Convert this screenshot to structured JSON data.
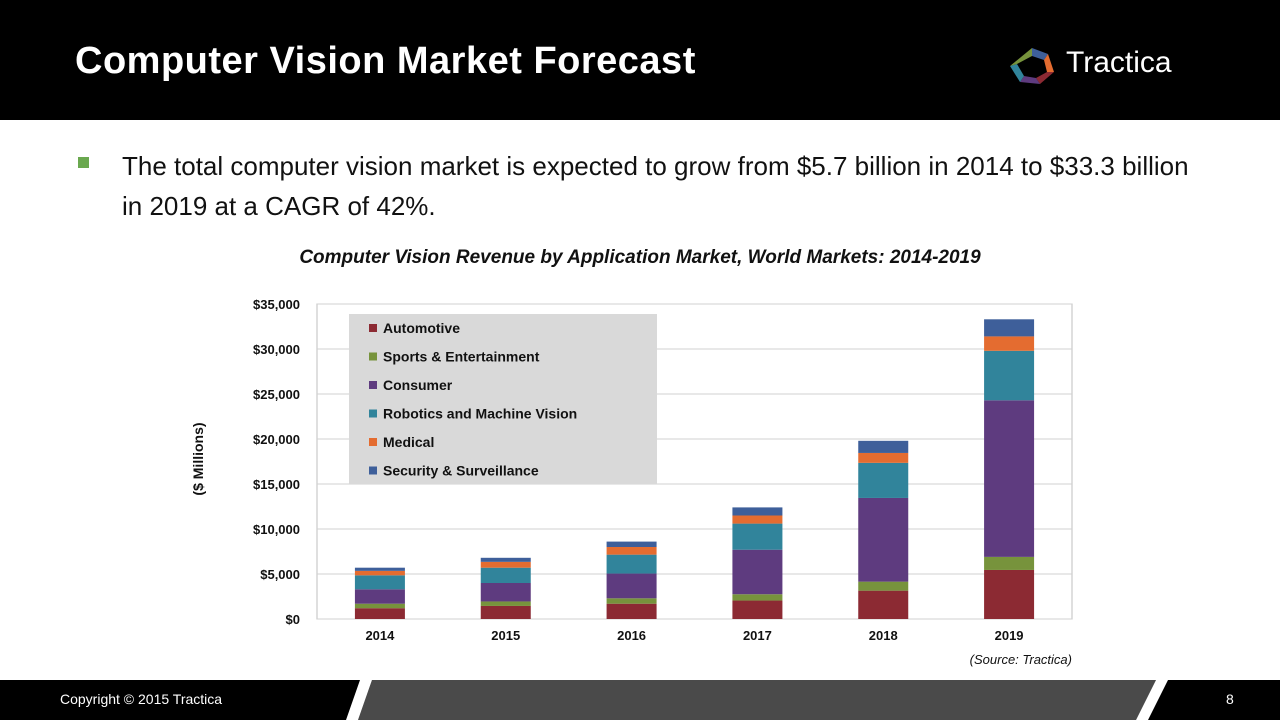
{
  "header": {
    "title": "Computer Vision Market Forecast",
    "logo_text": "Tractica"
  },
  "bullet": {
    "text": "The total computer vision market is expected to grow from $5.7 billion in 2014 to $33.3 billion in 2019 at a CAGR of 42%.",
    "marker_color": "#6aa84f"
  },
  "footer": {
    "copyright": "Copyright © 2015 Tractica",
    "page_number": "8"
  },
  "chart_data": {
    "type": "bar",
    "stacked": true,
    "title": "Computer Vision Revenue by Application Market, World Markets: 2014-2019",
    "ylabel": "($ Millions)",
    "xlabel": "",
    "ylim": [
      0,
      35000
    ],
    "yticks": [
      0,
      5000,
      10000,
      15000,
      20000,
      25000,
      30000,
      35000
    ],
    "ytick_labels": [
      "$0",
      "$5,000",
      "$10,000",
      "$15,000",
      "$20,000",
      "$25,000",
      "$30,000",
      "$35,000"
    ],
    "categories": [
      "2014",
      "2015",
      "2016",
      "2017",
      "2018",
      "2019"
    ],
    "source": "(Source: Tractica)",
    "grid": true,
    "legend_position": "top-left",
    "series": [
      {
        "name": "Automotive",
        "color": "#8c2a33",
        "values": [
          1200,
          1450,
          1700,
          2050,
          3150,
          5450
        ]
      },
      {
        "name": "Sports & Entertainment",
        "color": "#77933c",
        "values": [
          500,
          500,
          600,
          700,
          1000,
          1450
        ]
      },
      {
        "name": "Consumer",
        "color": "#5e3b7f",
        "values": [
          1600,
          2050,
          2750,
          4950,
          9300,
          17400
        ]
      },
      {
        "name": "Robotics and Machine Vision",
        "color": "#31849b",
        "values": [
          1550,
          1700,
          2100,
          2900,
          3900,
          5500
        ]
      },
      {
        "name": "Medical",
        "color": "#e46c30",
        "values": [
          500,
          650,
          850,
          900,
          1100,
          1600
        ]
      },
      {
        "name": "Security & Surveillance",
        "color": "#3e5f9a",
        "values": [
          350,
          450,
          600,
          900,
          1350,
          1900
        ]
      }
    ]
  }
}
